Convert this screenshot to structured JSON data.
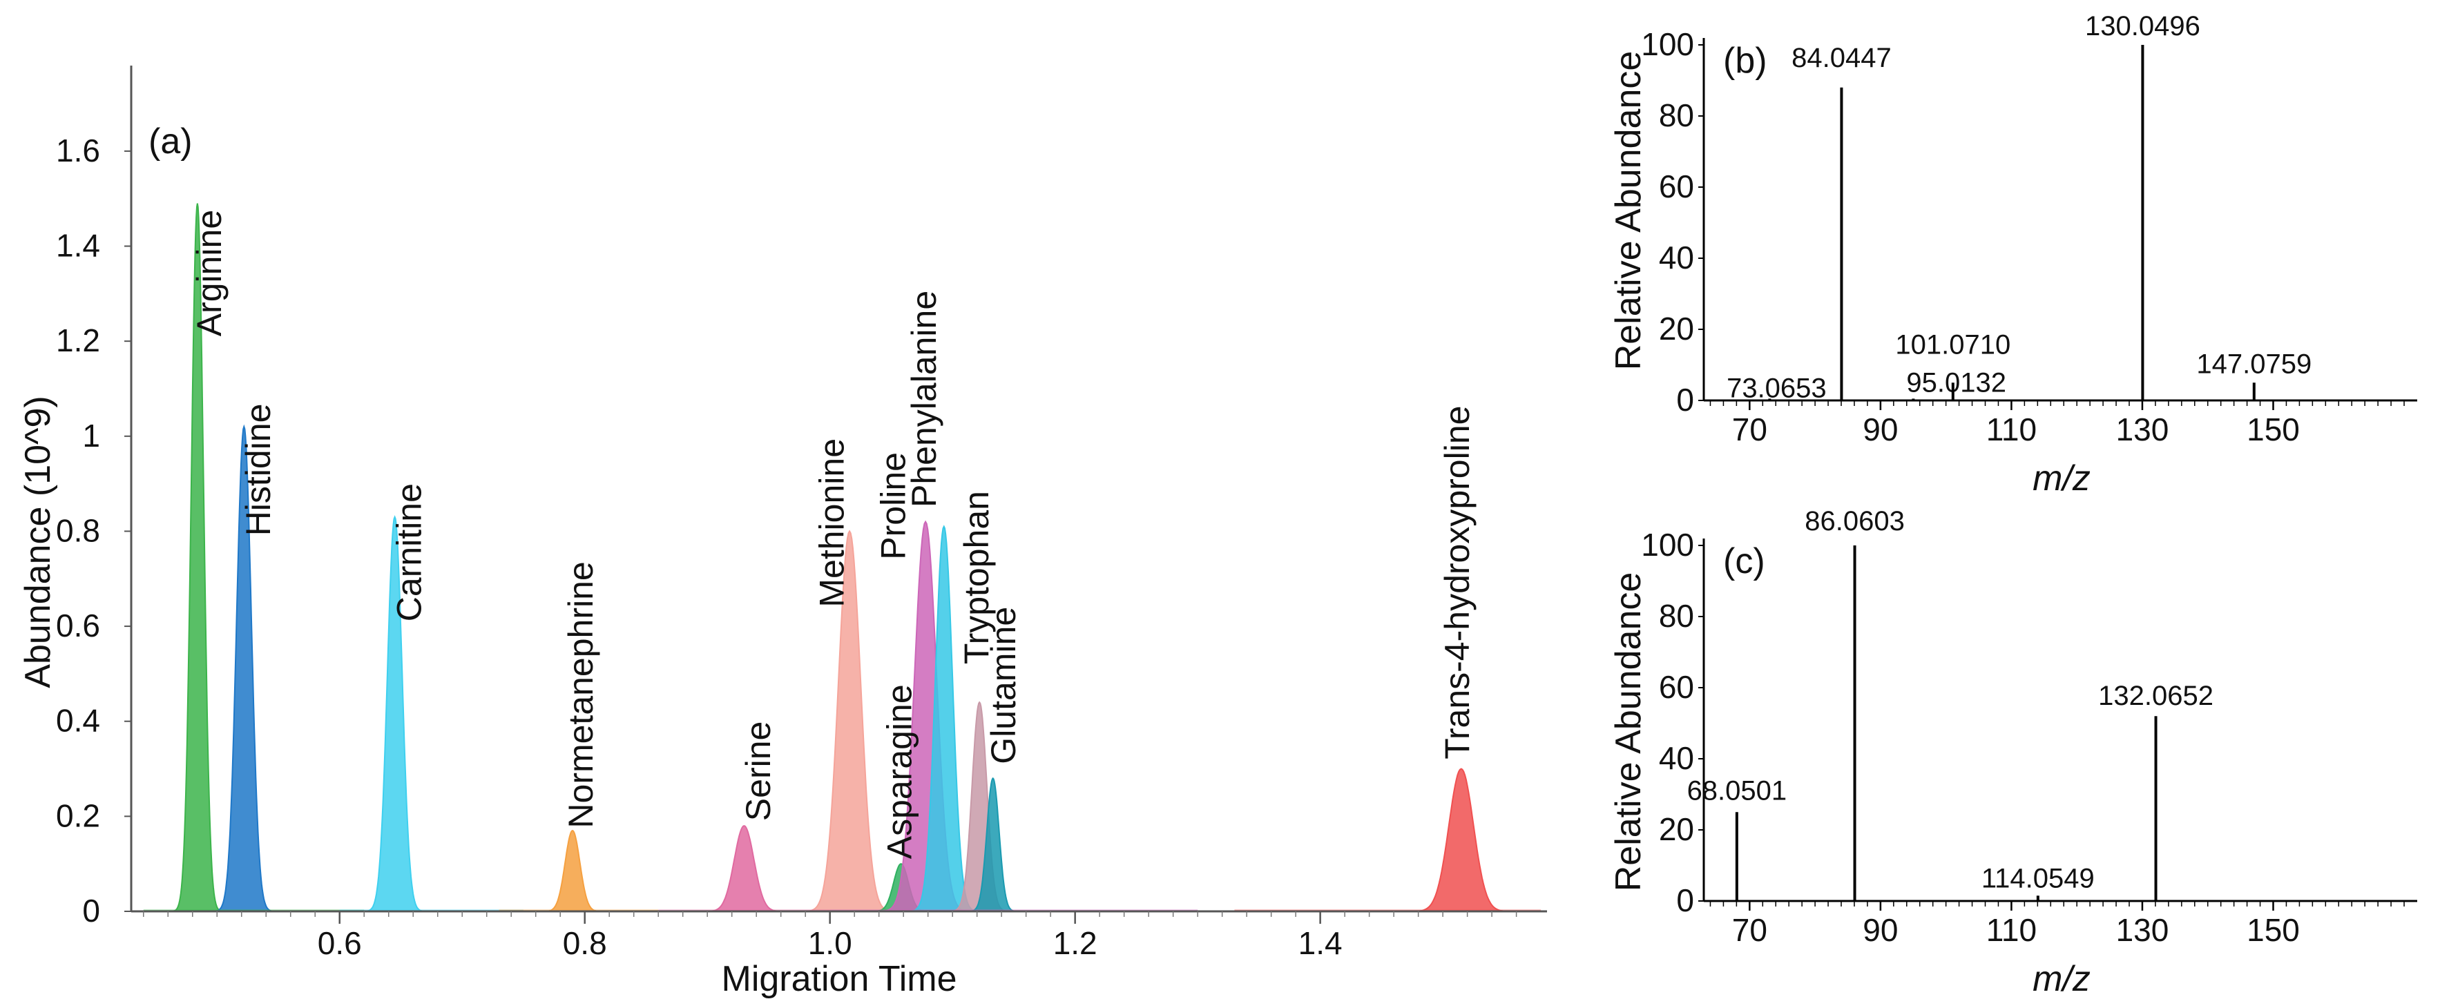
{
  "chart_data": [
    {
      "type": "area",
      "panel_label": "(a)",
      "xlabel": "Migration Time",
      "ylabel": "Abundance (10^9)",
      "xlim": [
        0.43,
        1.585
      ],
      "ylim": [
        0,
        1.78
      ],
      "xticks": [
        0.6,
        0.8,
        1.0,
        1.2,
        1.4
      ],
      "xtick_labels": [
        "0.6",
        "0.8",
        "1.0",
        "1.2",
        "1.4"
      ],
      "yticks": [
        0,
        0.2,
        0.4,
        0.6,
        0.8,
        1.0,
        1.2,
        1.4,
        1.6
      ],
      "ytick_labels": [
        "0",
        "0.2",
        "0.4",
        "0.6",
        "0.8",
        "1",
        "1.2",
        "1.4",
        "1.6"
      ],
      "series": [
        {
          "name": "Arginine",
          "x": 0.484,
          "y": 1.49,
          "width": 0.005,
          "color": "#3cb44b",
          "label_x": 0.492,
          "label_y": 1.21
        },
        {
          "name": "Histidine",
          "x": 0.522,
          "y": 1.02,
          "width": 0.006,
          "color": "#1f78c8",
          "label_x": 0.532,
          "label_y": 0.79
        },
        {
          "name": "Carnitine",
          "x": 0.645,
          "y": 0.83,
          "width": 0.006,
          "color": "#3fd0ef",
          "label_x": 0.655,
          "label_y": 0.61
        },
        {
          "name": "Normetanephrine",
          "x": 0.79,
          "y": 0.17,
          "width": 0.006,
          "color": "#f5a040",
          "label_x": 0.795,
          "label_y": 0.175
        },
        {
          "name": "Serine",
          "x": 0.93,
          "y": 0.18,
          "width": 0.008,
          "color": "#e06aa0",
          "label_x": 0.94,
          "label_y": 0.19
        },
        {
          "name": "Methionine",
          "x": 1.016,
          "y": 0.8,
          "width": 0.009,
          "color": "#f5a49a",
          "label_x": 1.0,
          "label_y": 0.64
        },
        {
          "name": "Asparagine",
          "x": 1.058,
          "y": 0.1,
          "width": 0.006,
          "color": "#2fb060",
          "label_x": 1.055,
          "label_y": 0.11
        },
        {
          "name": "Proline",
          "x": 1.078,
          "y": 0.82,
          "width": 0.009,
          "color": "#cc66b8",
          "label_x": 1.05,
          "label_y": 0.74
        },
        {
          "name": "Phenylalanine",
          "x": 1.093,
          "y": 0.81,
          "width": 0.007,
          "color": "#36c8e6",
          "label_x": 1.075,
          "label_y": 0.85
        },
        {
          "name": "Tryptophan",
          "x": 1.122,
          "y": 0.44,
          "width": 0.006,
          "color": "#c89aa8",
          "label_x": 1.118,
          "label_y": 0.52
        },
        {
          "name": "Glutamine",
          "x": 1.133,
          "y": 0.28,
          "width": 0.005,
          "color": "#1a9ab0",
          "label_x": 1.14,
          "label_y": 0.31
        },
        {
          "name": "Trans-4-hydroxyproline",
          "x": 1.515,
          "y": 0.3,
          "width": 0.01,
          "color": "#f05050",
          "label_x": 1.51,
          "label_y": 0.32
        }
      ]
    },
    {
      "type": "bar",
      "panel_label": "(b)",
      "xlabel": "m/z",
      "ylabel": "Relative Abundance",
      "xlim": [
        63,
        172
      ],
      "ylim": [
        0,
        100
      ],
      "xticks": [
        70,
        90,
        110,
        130,
        150
      ],
      "xtick_labels": [
        "70",
        "90",
        "110",
        "130",
        "150"
      ],
      "yticks": [
        0,
        20,
        40,
        60,
        80,
        100
      ],
      "ytick_labels": [
        "0",
        "20",
        "40",
        "60",
        "80",
        "100"
      ],
      "peaks": [
        {
          "mz": 73.0653,
          "value": 0.5,
          "label": "73.0653"
        },
        {
          "mz": 84.0447,
          "value": 88,
          "label": "84.0447"
        },
        {
          "mz": 95.0132,
          "value": 0.5,
          "label": "95.0132"
        },
        {
          "mz": 101.071,
          "value": 5,
          "label": "101.0710"
        },
        {
          "mz": 130.0496,
          "value": 100,
          "label": "130.0496"
        },
        {
          "mz": 147.0759,
          "value": 5,
          "label": "147.0759"
        }
      ]
    },
    {
      "type": "bar",
      "panel_label": "(c)",
      "xlabel": "m/z",
      "ylabel": "Relative Abundance",
      "xlim": [
        63,
        172
      ],
      "ylim": [
        0,
        100
      ],
      "xticks": [
        70,
        90,
        110,
        130,
        150
      ],
      "xtick_labels": [
        "70",
        "90",
        "110",
        "130",
        "150"
      ],
      "yticks": [
        0,
        20,
        40,
        60,
        80,
        100
      ],
      "ytick_labels": [
        "0",
        "20",
        "40",
        "60",
        "80",
        "100"
      ],
      "peaks": [
        {
          "mz": 68.0501,
          "value": 25,
          "label": "68.0501"
        },
        {
          "mz": 86.0603,
          "value": 100,
          "label": "86.0603"
        },
        {
          "mz": 114.0549,
          "value": 1.5,
          "label": "114.0549"
        },
        {
          "mz": 132.0652,
          "value": 52,
          "label": "132.0652"
        }
      ]
    }
  ]
}
